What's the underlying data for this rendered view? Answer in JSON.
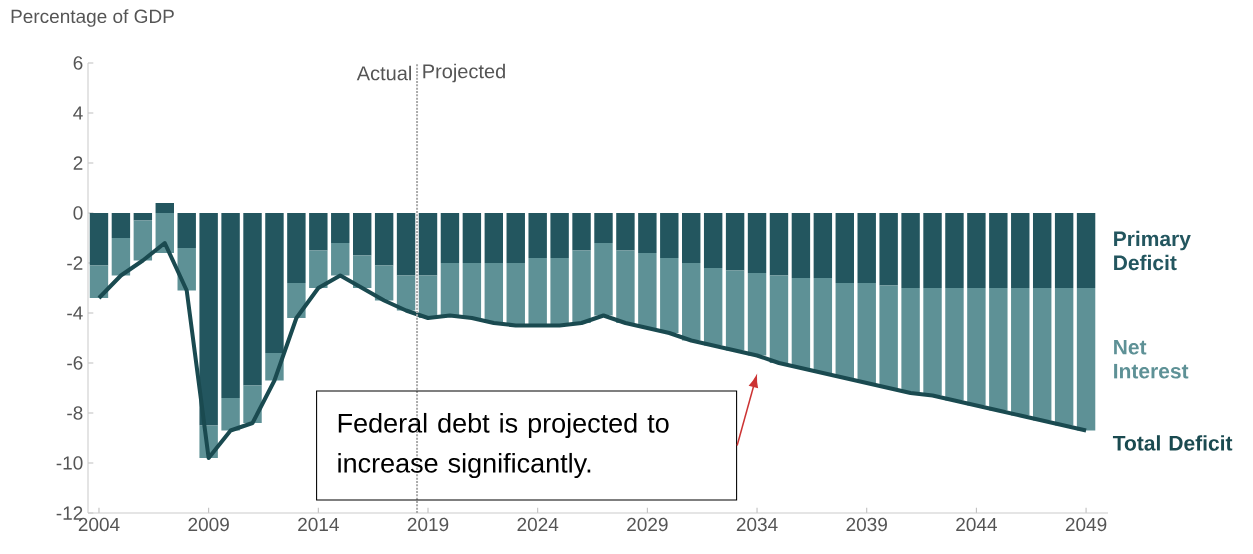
{
  "chart_data": {
    "type": "bar",
    "stacked": true,
    "ylabel": "Percentage of GDP",
    "x": [
      2004,
      2005,
      2006,
      2007,
      2008,
      2009,
      2010,
      2011,
      2012,
      2013,
      2014,
      2015,
      2016,
      2017,
      2018,
      2019,
      2020,
      2021,
      2022,
      2023,
      2024,
      2025,
      2026,
      2027,
      2028,
      2029,
      2030,
      2031,
      2032,
      2033,
      2034,
      2035,
      2036,
      2037,
      2038,
      2039,
      2040,
      2041,
      2042,
      2043,
      2044,
      2045,
      2046,
      2047,
      2048,
      2049
    ],
    "xlim": [
      2003.5,
      2050.0
    ],
    "xticks": [
      2004,
      2009,
      2014,
      2019,
      2024,
      2029,
      2034,
      2039,
      2044,
      2049
    ],
    "ylim": [
      -12,
      6
    ],
    "yticks": [
      -12,
      -10,
      -8,
      -6,
      -4,
      -2,
      0,
      2,
      4,
      6
    ],
    "series": [
      {
        "name": "Primary Deficit",
        "color": "#23565f",
        "values": [
          -2.1,
          -1.0,
          -0.3,
          0.4,
          -1.4,
          -8.5,
          -7.4,
          -6.9,
          -5.6,
          -2.8,
          -1.5,
          -1.2,
          -1.7,
          -2.1,
          -2.5,
          -2.5,
          -2.0,
          -2.0,
          -2.0,
          -2.0,
          -1.8,
          -1.8,
          -1.5,
          -1.2,
          -1.5,
          -1.6,
          -1.8,
          -2.0,
          -2.2,
          -2.3,
          -2.4,
          -2.5,
          -2.6,
          -2.6,
          -2.8,
          -2.8,
          -2.9,
          -3.0,
          -3.0,
          -3.0,
          -3.0,
          -3.0,
          -3.0,
          -3.0,
          -3.0,
          -3.0
        ]
      },
      {
        "name": "Net Interest",
        "color": "#5e9196",
        "values": [
          -1.3,
          -1.5,
          -1.6,
          -1.6,
          -1.7,
          -1.3,
          -1.3,
          -1.5,
          -1.1,
          -1.4,
          -1.5,
          -1.3,
          -1.3,
          -1.4,
          -1.4,
          -1.7,
          -2.1,
          -2.2,
          -2.4,
          -2.5,
          -2.7,
          -2.7,
          -2.9,
          -2.9,
          -2.9,
          -3.0,
          -3.0,
          -3.1,
          -3.1,
          -3.2,
          -3.3,
          -3.5,
          -3.6,
          -3.8,
          -3.8,
          -4.0,
          -4.1,
          -4.2,
          -4.3,
          -4.5,
          -4.7,
          -4.9,
          -5.1,
          -5.3,
          -5.5,
          -5.7
        ]
      },
      {
        "name": "Total Deficit",
        "type": "line",
        "color": "#1a4a50",
        "values": [
          -3.4,
          -2.5,
          -1.9,
          -1.2,
          -3.1,
          -9.8,
          -8.7,
          -8.4,
          -6.7,
          -4.2,
          -3.0,
          -2.5,
          -3.0,
          -3.5,
          -3.9,
          -4.2,
          -4.1,
          -4.2,
          -4.4,
          -4.5,
          -4.5,
          -4.5,
          -4.4,
          -4.1,
          -4.4,
          -4.6,
          -4.8,
          -5.1,
          -5.3,
          -5.5,
          -5.7,
          -6.0,
          -6.2,
          -6.4,
          -6.6,
          -6.8,
          -7.0,
          -7.2,
          -7.3,
          -7.5,
          -7.7,
          -7.9,
          -8.1,
          -8.3,
          -8.5,
          -8.7
        ]
      }
    ],
    "ref_lines": [
      {
        "axis": "x",
        "value": 2018.5,
        "line_style": "dotted",
        "color": "#aaaaaa",
        "label": "Actual"
      }
    ],
    "annotations": [
      "Projected",
      "Federal debt is projected to increase significantly."
    ]
  }
}
